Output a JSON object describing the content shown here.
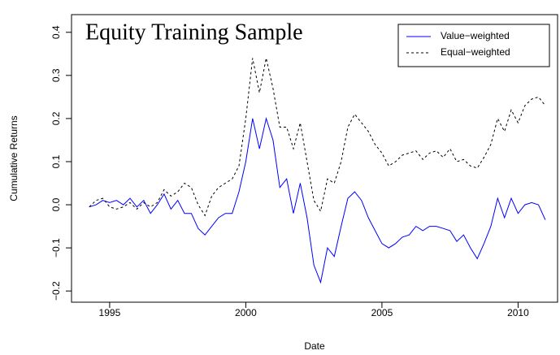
{
  "chart_data": {
    "type": "line",
    "title": "Equity Training Sample",
    "xlabel": "Date",
    "ylabel": "Cumulative Returns",
    "x": [
      1994.25,
      1994.5,
      1994.75,
      1995,
      1995.25,
      1995.5,
      1995.75,
      1996,
      1996.25,
      1996.5,
      1996.75,
      1997,
      1997.25,
      1997.5,
      1997.75,
      1998,
      1998.25,
      1998.5,
      1998.75,
      1999,
      1999.25,
      1999.5,
      1999.75,
      2000,
      2000.25,
      2000.5,
      2000.75,
      2001,
      2001.25,
      2001.5,
      2001.75,
      2002,
      2002.25,
      2002.5,
      2002.75,
      2003,
      2003.25,
      2003.5,
      2003.75,
      2004,
      2004.25,
      2004.5,
      2004.75,
      2005,
      2005.25,
      2005.5,
      2005.75,
      2006,
      2006.25,
      2006.5,
      2006.75,
      2007,
      2007.25,
      2007.5,
      2007.75,
      2008,
      2008.25,
      2008.5,
      2008.75,
      2009,
      2009.25,
      2009.5,
      2009.75,
      2010,
      2010.25,
      2010.5,
      2010.75,
      2011
    ],
    "series": [
      {
        "name": "Value−weighted",
        "color": "#0000ff",
        "linestyle": "solid",
        "values": [
          -0.005,
          0,
          0.01,
          0.005,
          0.01,
          0,
          0.015,
          -0.005,
          0.01,
          -0.02,
          0,
          0.025,
          -0.01,
          0.01,
          -0.02,
          -0.02,
          -0.055,
          -0.07,
          -0.05,
          -0.03,
          -0.02,
          -0.02,
          0.03,
          0.1,
          0.2,
          0.13,
          0.2,
          0.15,
          0.04,
          0.06,
          -0.02,
          0.05,
          -0.03,
          -0.14,
          -0.18,
          -0.1,
          -0.12,
          -0.05,
          0.015,
          0.03,
          0.01,
          -0.03,
          -0.06,
          -0.09,
          -0.1,
          -0.09,
          -0.075,
          -0.07,
          -0.05,
          -0.06,
          -0.05,
          -0.05,
          -0.055,
          -0.06,
          -0.085,
          -0.07,
          -0.1,
          -0.125,
          -0.09,
          -0.05,
          0.015,
          -0.03,
          0.015,
          -0.02,
          0,
          0.005,
          0,
          -0.035
        ]
      },
      {
        "name": "Equal−weighted",
        "color": "#000000",
        "linestyle": "dashed",
        "values": [
          -0.005,
          0.01,
          0.015,
          -0.005,
          -0.01,
          -0.005,
          0.005,
          -0.01,
          0.005,
          -0.005,
          0.005,
          0.035,
          0.02,
          0.03,
          0.05,
          0.04,
          0,
          -0.025,
          0.02,
          0.04,
          0.05,
          0.06,
          0.09,
          0.2,
          0.34,
          0.26,
          0.34,
          0.27,
          0.18,
          0.18,
          0.13,
          0.19,
          0.1,
          0.01,
          -0.015,
          0.06,
          0.05,
          0.1,
          0.18,
          0.21,
          0.19,
          0.17,
          0.14,
          0.12,
          0.09,
          0.1,
          0.115,
          0.12,
          0.125,
          0.105,
          0.12,
          0.125,
          0.11,
          0.13,
          0.1,
          0.105,
          0.09,
          0.085,
          0.11,
          0.14,
          0.2,
          0.17,
          0.22,
          0.19,
          0.23,
          0.245,
          0.25,
          0.23
        ]
      }
    ],
    "xlim": [
      1993.6,
      2011.45
    ],
    "xticks": [
      1995,
      2000,
      2005,
      2010
    ],
    "ylim": [
      -0.226,
      0.441
    ],
    "yticks": [
      {
        "value": -0.2,
        "label": "−0.2"
      },
      {
        "value": -0.1,
        "label": "−0.1"
      },
      {
        "value": 0,
        "label": "0.0"
      },
      0.1,
      0.2,
      0.3,
      0.4
    ],
    "legend": "top-right",
    "grid": false
  }
}
